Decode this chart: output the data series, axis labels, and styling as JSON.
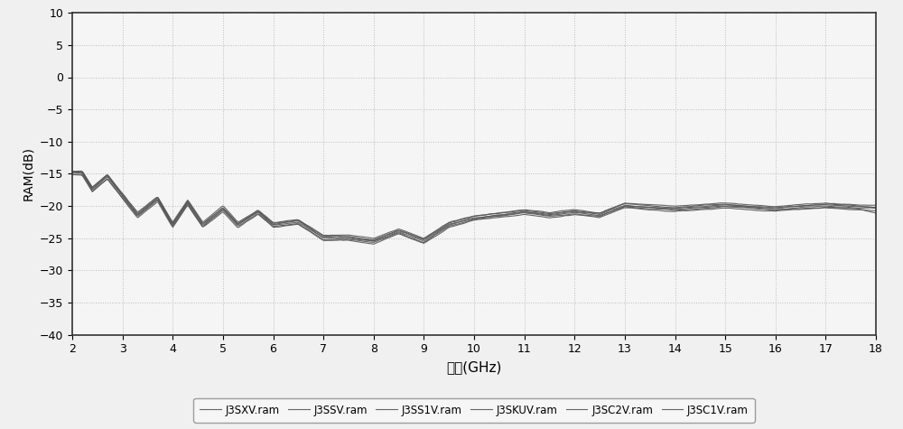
{
  "xlabel": "频率(GHz)",
  "ylabel": "RAM(dB)",
  "xlim": [
    2,
    18
  ],
  "ylim": [
    -40,
    10
  ],
  "yticks": [
    -40,
    -35,
    -30,
    -25,
    -20,
    -15,
    -10,
    -5,
    0,
    5,
    10
  ],
  "xticks": [
    2,
    3,
    4,
    5,
    6,
    7,
    8,
    9,
    10,
    11,
    12,
    13,
    14,
    15,
    16,
    17,
    18
  ],
  "grid_color": "#bbbbbb",
  "background_color": "#f0f0f0",
  "plot_bg_color": "#f5f5f5",
  "line_color": "#555555",
  "legend_labels": [
    "J3SXV.ram",
    "J3SSV.ram",
    "J3SS1V.ram",
    "J3SKUV.ram",
    "J3SC2V.ram",
    "J3SC1V.ram"
  ],
  "figsize": [
    10.0,
    4.75
  ],
  "dpi": 100,
  "ylabel_fontsize": 10,
  "xlabel_fontsize": 11,
  "tick_fontsize": 9,
  "legend_fontsize": 8.5
}
